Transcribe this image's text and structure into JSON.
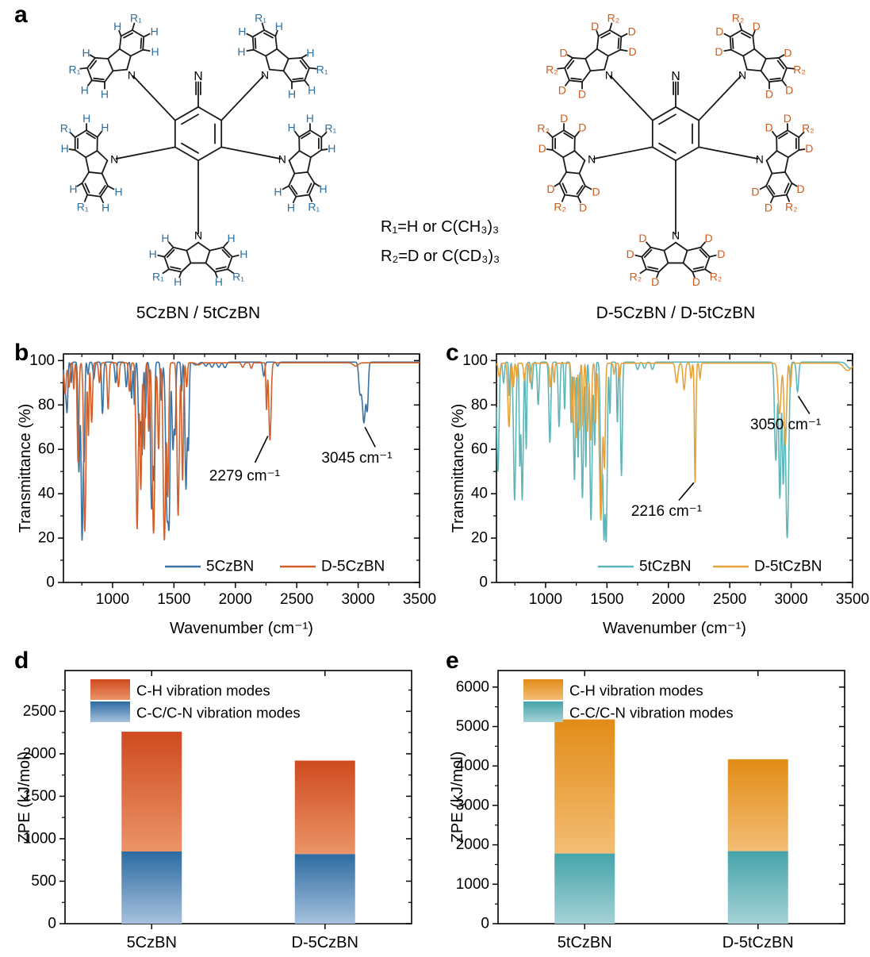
{
  "panels": {
    "a": {
      "letter": "a"
    },
    "b": {
      "letter": "b"
    },
    "c": {
      "letter": "c"
    },
    "d": {
      "letter": "d"
    },
    "e": {
      "letter": "e"
    }
  },
  "panel_a": {
    "note_line1": "R₁=H or C(CH₃)₃",
    "note_line2": "R₂=D or C(CD₃)₃",
    "structures": [
      {
        "caption": "5CzBN / 5tCzBN",
        "h_label": "H",
        "r_label": "R₁",
        "label_color": "#2e6f9f",
        "nitrile_label": "N",
        "nitrogen_label": "N"
      },
      {
        "caption": "D-5CzBN / D-5tCzBN",
        "h_label": "D",
        "r_label": "R₂",
        "label_color": "#cf5c1d",
        "nitrile_label": "N",
        "nitrogen_label": "N"
      }
    ]
  },
  "chart_data": [
    {
      "type": "line",
      "panel": "b",
      "xlabel": "Wavenumber (cm⁻¹)",
      "ylabel": "Transmittance (%)",
      "xlim": [
        600,
        3500
      ],
      "ylim": [
        0,
        103
      ],
      "xticks": [
        1000,
        1500,
        2000,
        2500,
        3000,
        3500
      ],
      "xminor_step": 250,
      "yticks": [
        0,
        20,
        40,
        60,
        80,
        100
      ],
      "yminor_step": 10,
      "series": [
        {
          "name": "5CzBN",
          "color": "#3a72a3",
          "baseline": 99.3,
          "peaks": [
            [
              615,
              86,
              9
            ],
            [
              630,
              80,
              6
            ],
            [
              663,
              90,
              5
            ],
            [
              726,
              50,
              7
            ],
            [
              752,
              19,
              8
            ],
            [
              770,
              62,
              5
            ],
            [
              800,
              94,
              6
            ],
            [
              848,
              92,
              7
            ],
            [
              918,
              76,
              7
            ],
            [
              1025,
              90,
              7
            ],
            [
              1112,
              88,
              7
            ],
            [
              1155,
              83,
              6
            ],
            [
              1178,
              80,
              5
            ],
            [
              1218,
              62,
              8
            ],
            [
              1240,
              58,
              7
            ],
            [
              1268,
              74,
              5
            ],
            [
              1318,
              33,
              9
            ],
            [
              1338,
              52,
              6
            ],
            [
              1398,
              82,
              7
            ],
            [
              1444,
              30,
              11
            ],
            [
              1462,
              46,
              7
            ],
            [
              1492,
              60,
              8
            ],
            [
              1510,
              70,
              6
            ],
            [
              1562,
              86,
              5
            ],
            [
              1598,
              42,
              8
            ],
            [
              1618,
              62,
              6
            ],
            [
              1680,
              98,
              20
            ],
            [
              1760,
              97.5,
              12
            ],
            [
              1810,
              97,
              12
            ],
            [
              1865,
              97,
              12
            ],
            [
              1915,
              96.8,
              12
            ],
            [
              2232,
              93,
              8
            ],
            [
              2345,
              97.5,
              8
            ],
            [
              3015,
              86,
              10
            ],
            [
              3047,
              72,
              13
            ],
            [
              3075,
              80,
              8
            ]
          ]
        },
        {
          "name": "D-5CzBN",
          "color": "#d2602a",
          "baseline": 99.0,
          "peaks": [
            [
              613,
              85,
              9
            ],
            [
              645,
              88,
              7
            ],
            [
              684,
              87,
              5
            ],
            [
              719,
              54,
              7
            ],
            [
              774,
              23,
              9
            ],
            [
              803,
              66,
              5
            ],
            [
              830,
              72,
              7
            ],
            [
              893,
              90,
              7
            ],
            [
              964,
              78,
              7
            ],
            [
              1048,
              88,
              7
            ],
            [
              1138,
              86,
              7
            ],
            [
              1200,
              24,
              9
            ],
            [
              1230,
              42,
              7
            ],
            [
              1258,
              60,
              6
            ],
            [
              1294,
              68,
              5
            ],
            [
              1334,
              22,
              10
            ],
            [
              1375,
              60,
              7
            ],
            [
              1422,
              19,
              10
            ],
            [
              1450,
              40,
              7
            ],
            [
              1534,
              30,
              9
            ],
            [
              1570,
              46,
              7
            ],
            [
              1604,
              88,
              6
            ],
            [
              1700,
              98,
              15
            ],
            [
              2060,
              97,
              10
            ],
            [
              2130,
              96.5,
              8
            ],
            [
              2254,
              78,
              5
            ],
            [
              2282,
              64,
              9
            ],
            [
              2980,
              97.5,
              20
            ]
          ]
        }
      ],
      "annotations": [
        {
          "text": "2279 cm⁻¹",
          "tx": 2075,
          "ty": 48,
          "line": [
            [
              2160,
              54
            ],
            [
              2265,
              66
            ]
          ]
        },
        {
          "text": "3045 cm⁻¹",
          "tx": 2990,
          "ty": 56,
          "line": [
            [
              3140,
              61
            ],
            [
              3055,
              70
            ]
          ]
        }
      ]
    },
    {
      "type": "line",
      "panel": "c",
      "xlabel": "Wavenumber (cm⁻¹)",
      "ylabel": "Transmittance (%)",
      "xlim": [
        600,
        3500
      ],
      "ylim": [
        0,
        103
      ],
      "xticks": [
        1000,
        1500,
        2000,
        2500,
        3000,
        3500
      ],
      "xminor_step": 250,
      "yticks": [
        0,
        20,
        40,
        60,
        80,
        100
      ],
      "yminor_step": 10,
      "series": [
        {
          "name": "5tCzBN",
          "color": "#5fb6b9",
          "baseline": 99.3,
          "peaks": [
            [
              612,
              50,
              9
            ],
            [
              658,
              90,
              7
            ],
            [
              705,
              84,
              5
            ],
            [
              748,
              37,
              9
            ],
            [
              790,
              55,
              5
            ],
            [
              810,
              37,
              8
            ],
            [
              842,
              60,
              5
            ],
            [
              888,
              87,
              7
            ],
            [
              940,
              80,
              7
            ],
            [
              1035,
              63,
              8
            ],
            [
              1110,
              70,
              7
            ],
            [
              1155,
              78,
              5
            ],
            [
              1208,
              72,
              5
            ],
            [
              1235,
              46,
              7
            ],
            [
              1265,
              56,
              6
            ],
            [
              1300,
              38,
              8
            ],
            [
              1328,
              52,
              5
            ],
            [
              1370,
              28,
              9
            ],
            [
              1400,
              62,
              6
            ],
            [
              1454,
              36,
              8
            ],
            [
              1475,
              26,
              7
            ],
            [
              1494,
              20,
              8
            ],
            [
              1524,
              76,
              5
            ],
            [
              1585,
              72,
              5
            ],
            [
              1618,
              48,
              7
            ],
            [
              1750,
              96,
              10
            ],
            [
              1805,
              96.5,
              10
            ],
            [
              1870,
              96,
              10
            ],
            [
              2875,
              55,
              10
            ],
            [
              2908,
              38,
              8
            ],
            [
              2935,
              46,
              7
            ],
            [
              2968,
              20,
              12
            ],
            [
              3052,
              86,
              9
            ],
            [
              3480,
              96.5,
              25
            ]
          ]
        },
        {
          "name": "D-5tCzBN",
          "color": "#e7a33b",
          "baseline": 98.8,
          "peaks": [
            [
              622,
              93,
              8
            ],
            [
              702,
              70,
              9
            ],
            [
              738,
              88,
              5
            ],
            [
              765,
              92,
              5
            ],
            [
              828,
              91,
              7
            ],
            [
              875,
              90,
              7
            ],
            [
              1038,
              88,
              7
            ],
            [
              1070,
              90,
              5
            ],
            [
              1218,
              72,
              7
            ],
            [
              1248,
              65,
              7
            ],
            [
              1275,
              68,
              5
            ],
            [
              1305,
              70,
              5
            ],
            [
              1340,
              68,
              7
            ],
            [
              1368,
              64,
              7
            ],
            [
              1408,
              72,
              5
            ],
            [
              1450,
              28,
              12
            ],
            [
              1480,
              55,
              7
            ],
            [
              1558,
              94,
              6
            ],
            [
              1604,
              92,
              5
            ],
            [
              2068,
              90,
              10
            ],
            [
              2128,
              87,
              9
            ],
            [
              2185,
              92,
              6
            ],
            [
              2218,
              45,
              6
            ],
            [
              2258,
              92,
              6
            ],
            [
              2905,
              76,
              12
            ],
            [
              2952,
              62,
              10
            ],
            [
              2995,
              88,
              6
            ],
            [
              3460,
              95.5,
              30
            ]
          ]
        }
      ],
      "annotations": [
        {
          "text": "2216 cm⁻¹",
          "tx": 1985,
          "ty": 32,
          "line": [
            [
              2085,
              37
            ],
            [
              2208,
              45
            ]
          ]
        },
        {
          "text": "3050 cm⁻¹",
          "tx": 2955,
          "ty": 71,
          "line": [
            [
              3150,
              76
            ],
            [
              3058,
              84
            ]
          ]
        }
      ]
    },
    {
      "type": "bar",
      "panel": "d",
      "categories": [
        "5CzBN",
        "D-5CzBN"
      ],
      "series": [
        {
          "name": "C-C/C-N vibration modes",
          "values": [
            850,
            820
          ],
          "gradient": [
            "#2d6ba1",
            "#a6c1dd"
          ]
        },
        {
          "name": "C-H vibration modes",
          "values": [
            1410,
            1100
          ],
          "gradient": [
            "#cf4a1f",
            "#eb9468"
          ]
        }
      ],
      "totals": [
        2260,
        1920
      ],
      "ylabel": "ZPE (kJ/mol)",
      "ylim": [
        0,
        2980
      ],
      "ytick_step": 500,
      "yminor_step": 250,
      "legend_order": [
        1,
        0
      ],
      "legend_position": "top-left",
      "stacked": true
    },
    {
      "type": "bar",
      "panel": "e",
      "categories": [
        "5tCzBN",
        "D-5tCzBN"
      ],
      "series": [
        {
          "name": "C-C/C-N vibration modes",
          "values": [
            1780,
            1840
          ],
          "gradient": [
            "#45a4aa",
            "#a5d2d6"
          ]
        },
        {
          "name": "C-H vibration modes",
          "values": [
            3400,
            2330
          ],
          "gradient": [
            "#e28c17",
            "#f3bd74"
          ]
        }
      ],
      "totals": [
        5180,
        4170
      ],
      "ylabel": "ZPE (kJ/mol)",
      "ylim": [
        0,
        6420
      ],
      "ytick_step": 1000,
      "yminor_step": 500,
      "legend_order": [
        1,
        0
      ],
      "legend_position": "top-left",
      "stacked": true
    }
  ]
}
